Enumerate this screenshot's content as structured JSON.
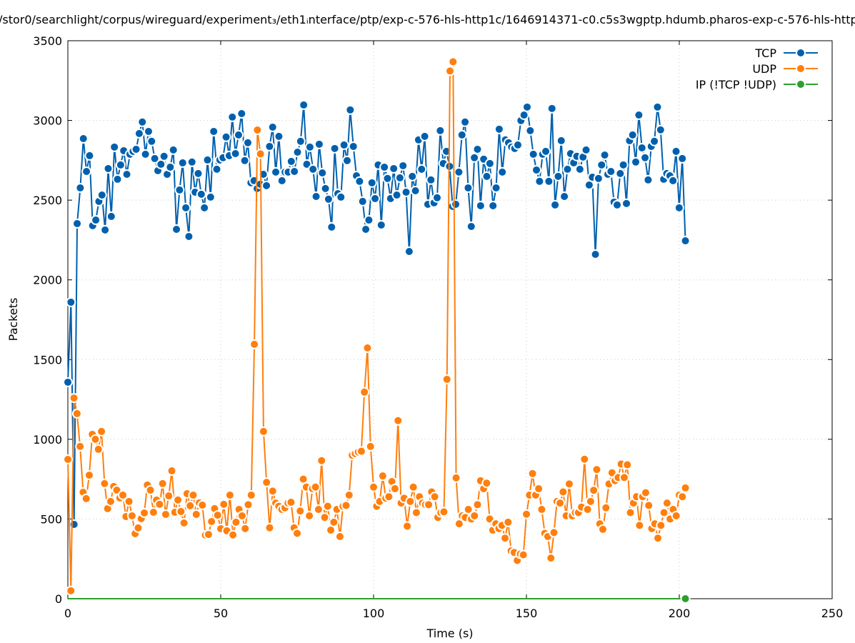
{
  "chart_data": {
    "type": "line",
    "title": "/stor0/searchlight/corpus/wireguard/experiment₃/eth1ᵢnterface/ptp/exp-c-576-hls-http1c/1646914371-c0.c5s3wgptp.hdumb.pharos-exp-c-576-hls-http",
    "xlabel": "Time (s)",
    "ylabel": "Packets",
    "xlim": [
      0,
      250
    ],
    "ylim": [
      0,
      3500
    ],
    "xticks": [
      "0",
      "50",
      "100",
      "150",
      "200",
      "250"
    ],
    "yticks": [
      "0",
      "500",
      "1000",
      "1500",
      "2000",
      "2500",
      "3000",
      "3500"
    ],
    "grid": true,
    "legend_position": "top-right",
    "series": [
      {
        "name": "TCP",
        "color": "#0060ad",
        "x_start": 0,
        "x_end": 202,
        "values": [
          1358,
          1860,
          466,
          2353,
          2577,
          2886,
          2680,
          2779,
          2340,
          2375,
          2492,
          2532,
          2313,
          2698,
          2398,
          2833,
          2631,
          2721,
          2810,
          2662,
          2788,
          2806,
          2819,
          2918,
          2990,
          2788,
          2931,
          2869,
          2761,
          2685,
          2725,
          2775,
          2662,
          2707,
          2815,
          2317,
          2564,
          2734,
          2452,
          2272,
          2739,
          2550,
          2667,
          2537,
          2452,
          2752,
          2519,
          2931,
          2694,
          2752,
          2766,
          2896,
          2779,
          3021,
          2792,
          2909,
          3043,
          2748,
          2860,
          2609,
          2622,
          2573,
          2600,
          2662,
          2591,
          2837,
          2958,
          2676,
          2900,
          2622,
          2676,
          2676,
          2743,
          2680,
          2801,
          2869,
          3097,
          2725,
          2833,
          2694,
          2523,
          2851,
          2671,
          2573,
          2506,
          2331,
          2824,
          2541,
          2519,
          2846,
          2748,
          3066,
          2837,
          2653,
          2618,
          2492,
          2317,
          2375,
          2609,
          2510,
          2721,
          2344,
          2707,
          2636,
          2510,
          2698,
          2532,
          2640,
          2716,
          2550,
          2178,
          2649,
          2559,
          2878,
          2694,
          2900,
          2474,
          2627,
          2483,
          2515,
          2936,
          2730,
          2806,
          2712,
          2461,
          2474,
          2676,
          2909,
          2990,
          2577,
          2335,
          2766,
          2819,
          2465,
          2757,
          2649,
          2730,
          2465,
          2577,
          2945,
          2676,
          2878,
          2860,
          2833,
          2824,
          2846,
          2999,
          3034,
          3084,
          2936,
          2788,
          2689,
          2618,
          2788,
          2806,
          2618,
          3075,
          2470,
          2649,
          2873,
          2523,
          2694,
          2792,
          2734,
          2775,
          2694,
          2770,
          2815,
          2595,
          2644,
          2160,
          2636,
          2721,
          2783,
          2662,
          2680,
          2488,
          2470,
          2667,
          2721,
          2479,
          2873,
          2909,
          2739,
          3034,
          2828,
          2766,
          2627,
          2837,
          2869,
          3084,
          2941,
          2631,
          2667,
          2653,
          2622,
          2806,
          2452,
          2761,
          2245
        ]
      },
      {
        "name": "UDP",
        "color": "#ff7f0e",
        "x_start": 0,
        "x_end": 202,
        "values": [
          874,
          50,
          1259,
          1161,
          955,
          668,
          628,
          775,
          1031,
          1000,
          937,
          1049,
          722,
          565,
          610,
          704,
          681,
          632,
          650,
          515,
          610,
          520,
          408,
          444,
          502,
          538,
          713,
          681,
          542,
          619,
          592,
          722,
          529,
          645,
          802,
          542,
          619,
          547,
          475,
          659,
          583,
          650,
          529,
          601,
          587,
          399,
          403,
          484,
          565,
          524,
          439,
          592,
          426,
          650,
          400,
          480,
          560,
          520,
          440,
          590,
          650,
          1596,
          2940,
          2790,
          1049,
          730,
          445,
          675,
          600,
          580,
          560,
          570,
          600,
          605,
          445,
          410,
          550,
          750,
          700,
          520,
          690,
          700,
          560,
          866,
          510,
          580,
          430,
          480,
          560,
          390,
          580,
          585,
          650,
          900,
          910,
          920,
          925,
          1296,
          1573,
          955,
          700,
          580,
          610,
          770,
          630,
          640,
          735,
          690,
          1117,
          600,
          630,
          455,
          610,
          700,
          540,
          640,
          600,
          590,
          590,
          670,
          640,
          510,
          540,
          545,
          1376,
          3310,
          3368,
          758,
          470,
          520,
          510,
          560,
          500,
          520,
          590,
          740,
          690,
          725,
          500,
          430,
          470,
          440,
          460,
          380,
          480,
          300,
          290,
          240,
          280,
          275,
          530,
          650,
          785,
          650,
          690,
          560,
          410,
          390,
          255,
          415,
          610,
          600,
          670,
          520,
          720,
          520,
          540,
          540,
          575,
          875,
          560,
          610,
          680,
          810,
          470,
          435,
          570,
          720,
          790,
          740,
          760,
          845,
          760,
          840,
          540,
          600,
          640,
          460,
          640,
          665,
          585,
          440,
          470,
          380,
          460,
          540,
          600,
          500,
          560,
          520,
          650,
          640,
          695
        ]
      },
      {
        "name": "IP (!TCP  !UDP)",
        "color": "#2ca02c",
        "x_start": 0,
        "x_end": 202,
        "values": [
          0,
          0
        ],
        "marker_only_last": true
      }
    ]
  }
}
